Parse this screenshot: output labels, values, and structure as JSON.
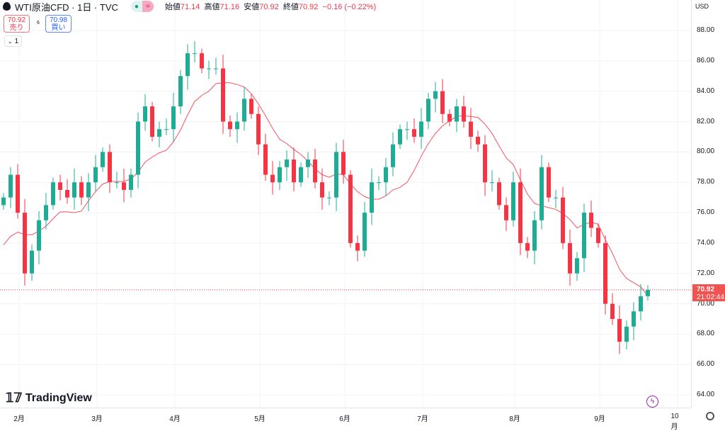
{
  "header": {
    "title": "WTI原油CFD · 1日 · TVC",
    "open_label": "始値",
    "open": "71.14",
    "high_label": "高値",
    "high": "71.16",
    "low_label": "安値",
    "low": "70.92",
    "close_label": "終値",
    "close": "70.92",
    "change": "−0.16 (−0.22%)"
  },
  "trade": {
    "sell_price": "70.92",
    "sell_label": "売り",
    "spread": "6",
    "buy_price": "70.98",
    "buy_label": "買い"
  },
  "collapse": {
    "label": "1"
  },
  "currency": "USD",
  "last_price": {
    "price": "70.92",
    "countdown": "21:02:44"
  },
  "logo": "TradingView",
  "colors": {
    "up": "#22ab94",
    "down": "#f23645",
    "ma": "#f7525f",
    "grid": "#f0f3fa"
  },
  "chart_data": {
    "type": "candlestick",
    "ylim": [
      63,
      89
    ],
    "y_ticks": [
      "88.00",
      "86.00",
      "84.00",
      "82.00",
      "80.00",
      "78.00",
      "76.00",
      "74.00",
      "72.00",
      "70.00",
      "68.00",
      "66.00",
      "64.00"
    ],
    "x_ticks": [
      {
        "label": "2月",
        "index": 2
      },
      {
        "label": "3月",
        "index": 13
      },
      {
        "label": "4月",
        "index": 24
      },
      {
        "label": "5月",
        "index": 36
      },
      {
        "label": "6月",
        "index": 48
      },
      {
        "label": "7月",
        "index": 59
      },
      {
        "label": "8月",
        "index": 72
      },
      {
        "label": "9月",
        "index": 84
      },
      {
        "label": "10月",
        "index": 95
      }
    ],
    "open0": 76.5,
    "closes": [
      77,
      78.5,
      76,
      72,
      73.5,
      75.5,
      76.5,
      78,
      77.5,
      77,
      78,
      77,
      78,
      79,
      80,
      78,
      78,
      77.5,
      78.5,
      82,
      83,
      81,
      81.5,
      81.5,
      83,
      85,
      86.5,
      86.5,
      85.5,
      85.5,
      85.5,
      82,
      81.5,
      82,
      83.5,
      82.5,
      80.5,
      78.5,
      78,
      79,
      79.5,
      78,
      79,
      79.5,
      78,
      77,
      77,
      80,
      78.5,
      74,
      73.5,
      76,
      78,
      78,
      79,
      80.5,
      81.5,
      81.5,
      81,
      82,
      83.5,
      84,
      82.5,
      82,
      83,
      82,
      81,
      80.5,
      78,
      78,
      76.5,
      75.5,
      78,
      74,
      73.5,
      75.5,
      79,
      77,
      77,
      74,
      72,
      73,
      76,
      75,
      74,
      70,
      69,
      67.5,
      68.5,
      69.5,
      70.5,
      70.92
    ],
    "ma_period": 9,
    "last": 70.92
  }
}
